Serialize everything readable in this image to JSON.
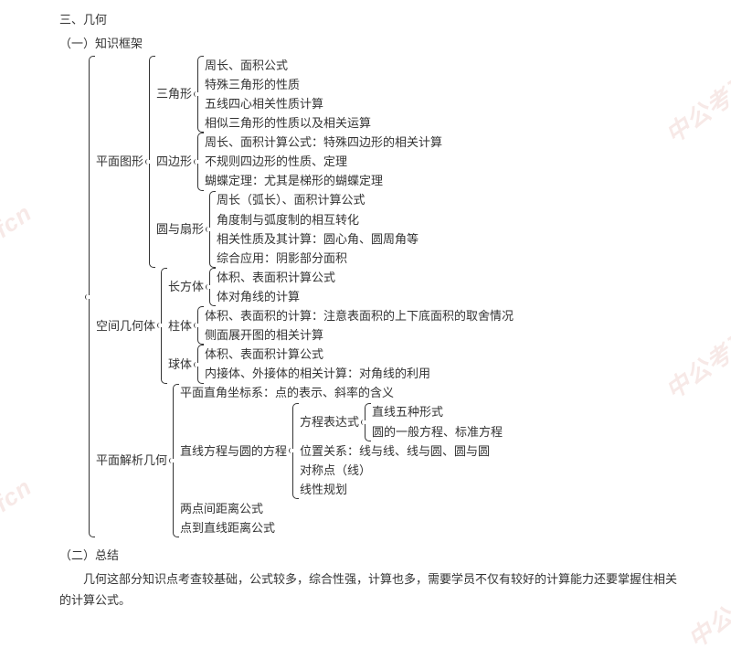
{
  "colors": {
    "text": "#333333",
    "bg": "#ffffff",
    "watermark": "#f7e9e7"
  },
  "typography": {
    "body_fontsize": 13,
    "watermark_fontsize": 26
  },
  "header": {
    "section": "三、几何",
    "sub1": "（一）知识框架",
    "sub2": "（二）总结"
  },
  "summary": "几何这部分知识点考查较基础，公式较多，综合性强，计算也多，需要学员不仅有较好的计算能力还要掌握住相关的计算公式。",
  "watermarks": {
    "left": "offcn",
    "right_top": "中公考研",
    "right_mid": "中公考研",
    "right_bot": "中公考"
  },
  "tree": {
    "type": "brace-tree",
    "children": [
      {
        "label": "平面图形",
        "children": [
          {
            "label": "三角形",
            "leaves": [
              "周长、面积公式",
              "特殊三角形的性质",
              "五线四心相关性质计算",
              "相似三角形的性质以及相关运算"
            ]
          },
          {
            "label": "四边形",
            "leaves": [
              "周长、面积计算公式：特殊四边形的相关计算",
              "不规则四边形的性质、定理",
              "蝴蝶定理：尤其是梯形的蝴蝶定理"
            ]
          },
          {
            "label": "圆与扇形",
            "leaves": [
              "周长（弧长）、面积计算公式",
              "角度制与弧度制的相互转化",
              "相关性质及其计算：圆心角、圆周角等",
              "综合应用：阴影部分面积"
            ]
          }
        ]
      },
      {
        "label": "空间几何体",
        "children": [
          {
            "label": "长方体",
            "leaves": [
              "体积、表面积计算公式",
              "体对角线的计算"
            ]
          },
          {
            "label": "柱体",
            "leaves": [
              "体积、表面积的计算：注意表面积的上下底面积的取舍情况",
              "侧面展开图的相关计算"
            ]
          },
          {
            "label": "球体",
            "leaves": [
              "体积、表面积计算公式",
              "内接体、外接体的相关计算：对角线的利用"
            ]
          }
        ]
      },
      {
        "label": "平面解析几何",
        "children": [
          {
            "leaf": "平面直角坐标系：点的表示、斜率的含义"
          },
          {
            "label": "直线方程与圆的方程",
            "children": [
              {
                "label": "方程表达式",
                "leaves": [
                  "直线五种形式",
                  "圆的一般方程、标准方程"
                ]
              },
              {
                "leaf": "位置关系：线与线、线与圆、圆与圆"
              },
              {
                "leaf": "对称点（线）"
              },
              {
                "leaf": "线性规划"
              }
            ]
          },
          {
            "leaf": "两点间距离公式"
          },
          {
            "leaf": "点到直线距离公式"
          }
        ]
      }
    ]
  }
}
